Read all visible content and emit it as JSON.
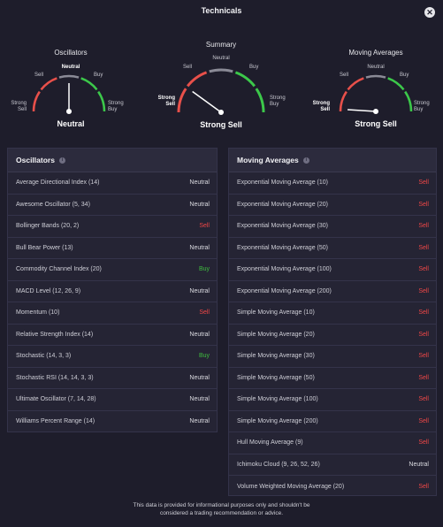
{
  "window": {
    "title": "Technicals"
  },
  "gauges": {
    "oscillators": {
      "title": "Oscillators",
      "labels": {
        "strong_sell": [
          "Strong",
          "Sell"
        ],
        "sell": "Sell",
        "neutral": "Neutral",
        "buy": "Buy",
        "strong_buy": [
          "Strong",
          "Buy"
        ]
      },
      "value": "Neutral",
      "needle_level": 0.5
    },
    "summary": {
      "title": "Summary",
      "labels": {
        "strong_sell": [
          "Strong",
          "Sell"
        ],
        "sell": "Sell",
        "neutral": "Neutral",
        "buy": "Buy",
        "strong_buy": [
          "Strong",
          "Buy"
        ]
      },
      "value": "Strong Sell",
      "needle_level": 0.2
    },
    "moving_averages": {
      "title": "Moving Averages",
      "labels": {
        "strong_sell": [
          "Strong",
          "Sell"
        ],
        "sell": "Sell",
        "neutral": "Neutral",
        "buy": "Buy",
        "strong_buy": [
          "Strong",
          "Buy"
        ]
      },
      "value": "Strong Sell",
      "needle_level": 0.02
    }
  },
  "oscillators_panel": {
    "title": "Oscillators",
    "rows": [
      {
        "name": "Average Directional Index (14)",
        "value": "Neutral",
        "status": "neutral"
      },
      {
        "name": "Awesome Oscillator (5, 34)",
        "value": "Neutral",
        "status": "neutral"
      },
      {
        "name": "Bollinger Bands (20, 2)",
        "value": "Sell",
        "status": "sell"
      },
      {
        "name": "Bull Bear Power (13)",
        "value": "Neutral",
        "status": "neutral"
      },
      {
        "name": "Commodity Channel Index (20)",
        "value": "Buy",
        "status": "buy"
      },
      {
        "name": "MACD Level (12, 26, 9)",
        "value": "Neutral",
        "status": "neutral"
      },
      {
        "name": "Momentum (10)",
        "value": "Sell",
        "status": "sell"
      },
      {
        "name": "Relative Strength Index (14)",
        "value": "Neutral",
        "status": "neutral"
      },
      {
        "name": "Stochastic (14, 3, 3)",
        "value": "Buy",
        "status": "buy"
      },
      {
        "name": "Stochastic RSI (14, 14, 3, 3)",
        "value": "Neutral",
        "status": "neutral"
      },
      {
        "name": "Ultimate Oscillator (7, 14, 28)",
        "value": "Neutral",
        "status": "neutral"
      },
      {
        "name": "Williams Percent Range (14)",
        "value": "Neutral",
        "status": "neutral"
      }
    ]
  },
  "moving_averages_panel": {
    "title": "Moving Averages",
    "rows": [
      {
        "name": "Exponential Moving Average (10)",
        "value": "Sell",
        "status": "sell"
      },
      {
        "name": "Exponential Moving Average (20)",
        "value": "Sell",
        "status": "sell"
      },
      {
        "name": "Exponential Moving Average (30)",
        "value": "Sell",
        "status": "sell"
      },
      {
        "name": "Exponential Moving Average (50)",
        "value": "Sell",
        "status": "sell"
      },
      {
        "name": "Exponential Moving Average (100)",
        "value": "Sell",
        "status": "sell"
      },
      {
        "name": "Exponential Moving Average (200)",
        "value": "Sell",
        "status": "sell"
      },
      {
        "name": "Simple Moving Average (10)",
        "value": "Sell",
        "status": "sell"
      },
      {
        "name": "Simple Moving Average (20)",
        "value": "Sell",
        "status": "sell"
      },
      {
        "name": "Simple Moving Average (30)",
        "value": "Sell",
        "status": "sell"
      },
      {
        "name": "Simple Moving Average (50)",
        "value": "Sell",
        "status": "sell"
      },
      {
        "name": "Simple Moving Average (100)",
        "value": "Sell",
        "status": "sell"
      },
      {
        "name": "Simple Moving Average (200)",
        "value": "Sell",
        "status": "sell"
      },
      {
        "name": "Hull Moving Average (9)",
        "value": "Sell",
        "status": "sell"
      },
      {
        "name": "Ichimoku Cloud (9, 26, 52, 26)",
        "value": "Neutral",
        "status": "neutral"
      },
      {
        "name": "Volume Weighted Moving Average (20)",
        "value": "Sell",
        "status": "sell"
      }
    ]
  },
  "footer": {
    "line1": "This data is provided for informational purposes only and shouldn't be",
    "line2": "considered a trading recommendation or advice."
  },
  "icons": {
    "close": "close-icon",
    "info": "info-icon"
  },
  "colors": {
    "sell": "#f04747",
    "buy": "#3fbf3f",
    "neutral": "#dcdce2",
    "arc_red": "#e8504a",
    "arc_grey": "#8a8a96",
    "arc_green": "#3cc84a"
  }
}
